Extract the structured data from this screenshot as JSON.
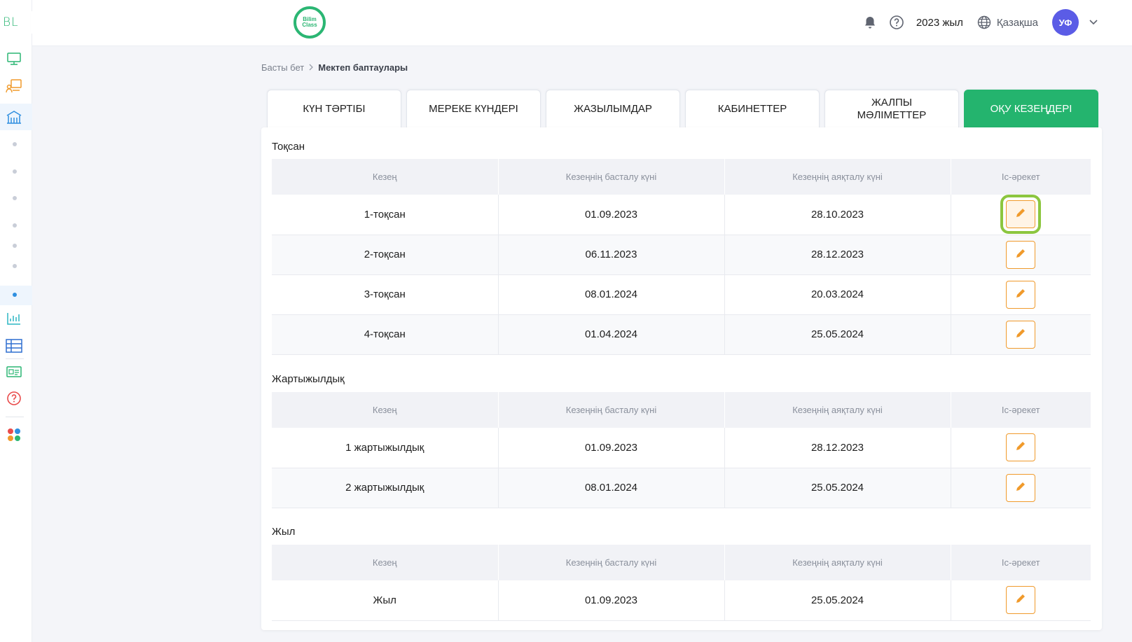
{
  "sidebar": {
    "logo": "BL",
    "expand": "›"
  },
  "header": {
    "brand_line1": "Bilim",
    "brand_line2": "Class",
    "year": "2023 жыл",
    "language": "Қазақша",
    "avatar_initials": "УФ"
  },
  "breadcrumb": {
    "home": "Басты бет",
    "current": "Мектеп баптаулары"
  },
  "tabs": [
    {
      "label": "КҮН ТӘРТІБІ",
      "active": false
    },
    {
      "label": "МЕРЕКЕ КҮНДЕРІ",
      "active": false
    },
    {
      "label": "ЖАЗЫЛЫМДАР",
      "active": false
    },
    {
      "label": "КАБИНЕТТЕР",
      "active": false
    },
    {
      "label": "ЖАЛПЫ МӘЛІМЕТТЕР",
      "active": false
    },
    {
      "label": "ОҚУ КЕЗЕҢДЕРІ",
      "active": true
    }
  ],
  "columns": {
    "period": "Кезең",
    "start": "Кезеңнің басталу күні",
    "end": "Кезеңнің аяқталу күні",
    "action": "Іс-әрекет"
  },
  "sections": {
    "quarter": {
      "title": "Тоқсан",
      "rows": [
        {
          "period": "1-тоқсан",
          "start": "01.09.2023",
          "end": "28.10.2023"
        },
        {
          "period": "2-тоқсан",
          "start": "06.11.2023",
          "end": "28.12.2023"
        },
        {
          "period": "3-тоқсан",
          "start": "08.01.2024",
          "end": "20.03.2024"
        },
        {
          "period": "4-тоқсан",
          "start": "01.04.2024",
          "end": "25.05.2024"
        }
      ]
    },
    "half": {
      "title": "Жартыжылдық",
      "rows": [
        {
          "period": "1 жартыжылдық",
          "start": "01.09.2023",
          "end": "28.12.2023"
        },
        {
          "period": "2 жартыжылдық",
          "start": "08.01.2024",
          "end": "25.05.2024"
        }
      ]
    },
    "year": {
      "title": "Жыл",
      "rows": [
        {
          "period": "Жыл",
          "start": "01.09.2023",
          "end": "25.05.2024"
        }
      ]
    }
  },
  "colors": {
    "accent": "#24b46e",
    "edit": "#f09a2b",
    "highlight": "#8cc63f",
    "avatar": "#5b5ce6"
  }
}
